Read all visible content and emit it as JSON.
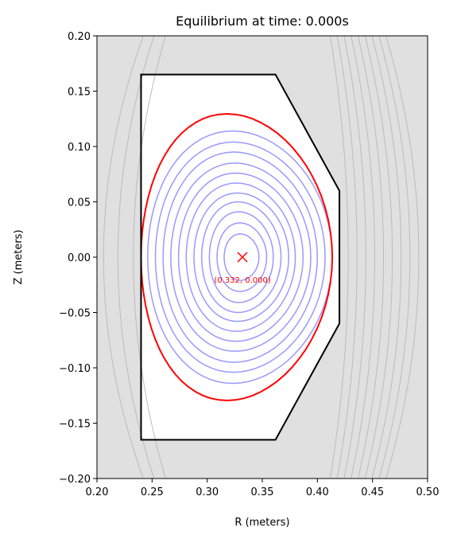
{
  "chart_data": {
    "type": "contour",
    "title": "Equilibrium at time: 0.000s",
    "xlabel": "R (meters)",
    "ylabel": "Z (meters)",
    "xlim": [
      0.2,
      0.5
    ],
    "ylim": [
      -0.2,
      0.2
    ],
    "xticks": [
      {
        "value": 0.2,
        "label": "0.20"
      },
      {
        "value": 0.25,
        "label": "0.25"
      },
      {
        "value": 0.3,
        "label": "0.30"
      },
      {
        "value": 0.35,
        "label": "0.35"
      },
      {
        "value": 0.4,
        "label": "0.40"
      },
      {
        "value": 0.45,
        "label": "0.45"
      },
      {
        "value": 0.5,
        "label": "0.50"
      }
    ],
    "yticks": [
      {
        "value": -0.2,
        "label": "−0.20"
      },
      {
        "value": -0.15,
        "label": "−0.15"
      },
      {
        "value": -0.1,
        "label": "−0.10"
      },
      {
        "value": -0.05,
        "label": "−0.05"
      },
      {
        "value": 0,
        "label": "0.00"
      },
      {
        "value": 0.05,
        "label": "0.05"
      },
      {
        "value": 0.1,
        "label": "0.10"
      },
      {
        "value": 0.15,
        "label": "0.15"
      },
      {
        "value": 0.2,
        "label": "0.20"
      }
    ],
    "wall": {
      "color": "#000000",
      "r": [
        0.24,
        0.362,
        0.42,
        0.42,
        0.362,
        0.24
      ],
      "z": [
        0.165,
        0.165,
        0.06,
        -0.06,
        -0.165,
        -0.165
      ]
    },
    "separatrix": {
      "color": "#ff0000",
      "r_min": 0.24,
      "r_max": 0.4135,
      "z_max": 0.1295
    },
    "closed_contours": {
      "color": "#9999ff",
      "r_min": [
        0.246,
        0.253,
        0.26,
        0.267,
        0.274,
        0.281,
        0.288,
        0.295,
        0.302,
        0.309,
        0.3154
      ],
      "r_max": [
        0.4135,
        0.407,
        0.4,
        0.394,
        0.387,
        0.38,
        0.374,
        0.367,
        0.36,
        0.354,
        0.347
      ],
      "z_max": [
        0.114,
        0.104,
        0.095,
        0.085,
        0.076,
        0.067,
        0.058,
        0.05,
        0.041,
        0.031,
        0.021
      ]
    },
    "open_contours": {
      "color": "#bbbbbb",
      "r": [
        0.206,
        0.219,
        0.233,
        0.428,
        0.436,
        0.444,
        0.452,
        0.46,
        0.468,
        0.476,
        0.484,
        0.492
      ]
    },
    "background_color": "#e0e0e0",
    "magnetic_axis": {
      "color": "#ff0000",
      "r": 0.332,
      "z": 0,
      "label": "(0.332, 0.000)"
    }
  }
}
